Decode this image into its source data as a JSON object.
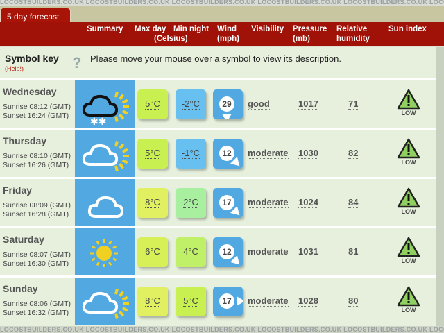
{
  "watermark": "LOCOSTBUILDERS.CO.UK",
  "tab": {
    "label": "5 day forecast"
  },
  "header": {
    "summary": "Summary",
    "max_day": "Max day",
    "min_night": "Min night",
    "celsius": "(Celsius)",
    "wind": "Wind",
    "mph": "(mph)",
    "visibility": "Visibility",
    "pressure": "Pressure",
    "mb": "(mb)",
    "relative": "Relative",
    "humidity": "humidity",
    "sun_index": "Sun index"
  },
  "symbol_key": {
    "title": "Symbol key",
    "help": "(Help!)",
    "icon": "question-mark-icon",
    "message": "Please move your mouse over a symbol to view its description."
  },
  "days": [
    {
      "day": "Wednesday",
      "sunrise": "Sunrise 08:12 (GMT)",
      "sunset": "Sunset 16:24 (GMT)",
      "summary_icon": "cloud-snow-sun-icon",
      "max": "5°C",
      "max_color": "#c8f050",
      "min": "-2°C",
      "min_color": "#68c0f0",
      "wind": "29",
      "wind_arrow": "down",
      "visibility": "good",
      "pressure": "1017",
      "humidity": "71",
      "sun_index": "LOW"
    },
    {
      "day": "Thursday",
      "sunrise": "Sunrise 08:10 (GMT)",
      "sunset": "Sunset 16:26 (GMT)",
      "summary_icon": "cloud-sun-icon",
      "max": "5°C",
      "max_color": "#c8f050",
      "min": "-1°C",
      "min_color": "#68c0f0",
      "wind": "12",
      "wind_arrow": "down-right",
      "visibility": "moderate",
      "pressure": "1030",
      "humidity": "82",
      "sun_index": "LOW"
    },
    {
      "day": "Friday",
      "sunrise": "Sunrise 08:09 (GMT)",
      "sunset": "Sunset 16:28 (GMT)",
      "summary_icon": "cloud-icon",
      "max": "8°C",
      "max_color": "#e0f060",
      "min": "2°C",
      "min_color": "#a8f0a0",
      "wind": "17",
      "wind_arrow": "down-right",
      "visibility": "moderate",
      "pressure": "1024",
      "humidity": "84",
      "sun_index": "LOW"
    },
    {
      "day": "Saturday",
      "sunrise": "Sunrise 08:07 (GMT)",
      "sunset": "Sunset 16:30 (GMT)",
      "summary_icon": "sun-icon",
      "max": "6°C",
      "max_color": "#d8f058",
      "min": "4°C",
      "min_color": "#c0f068",
      "wind": "12",
      "wind_arrow": "down-right",
      "visibility": "moderate",
      "pressure": "1031",
      "humidity": "81",
      "sun_index": "LOW"
    },
    {
      "day": "Sunday",
      "sunrise": "Sunrise 08:06 (GMT)",
      "sunset": "Sunset 16:32 (GMT)",
      "summary_icon": "cloud-sun-icon",
      "max": "8°C",
      "max_color": "#e0f060",
      "min": "5°C",
      "min_color": "#c8f050",
      "wind": "17",
      "wind_arrow": "right",
      "visibility": "moderate",
      "pressure": "1028",
      "humidity": "80",
      "sun_index": "LOW"
    }
  ]
}
